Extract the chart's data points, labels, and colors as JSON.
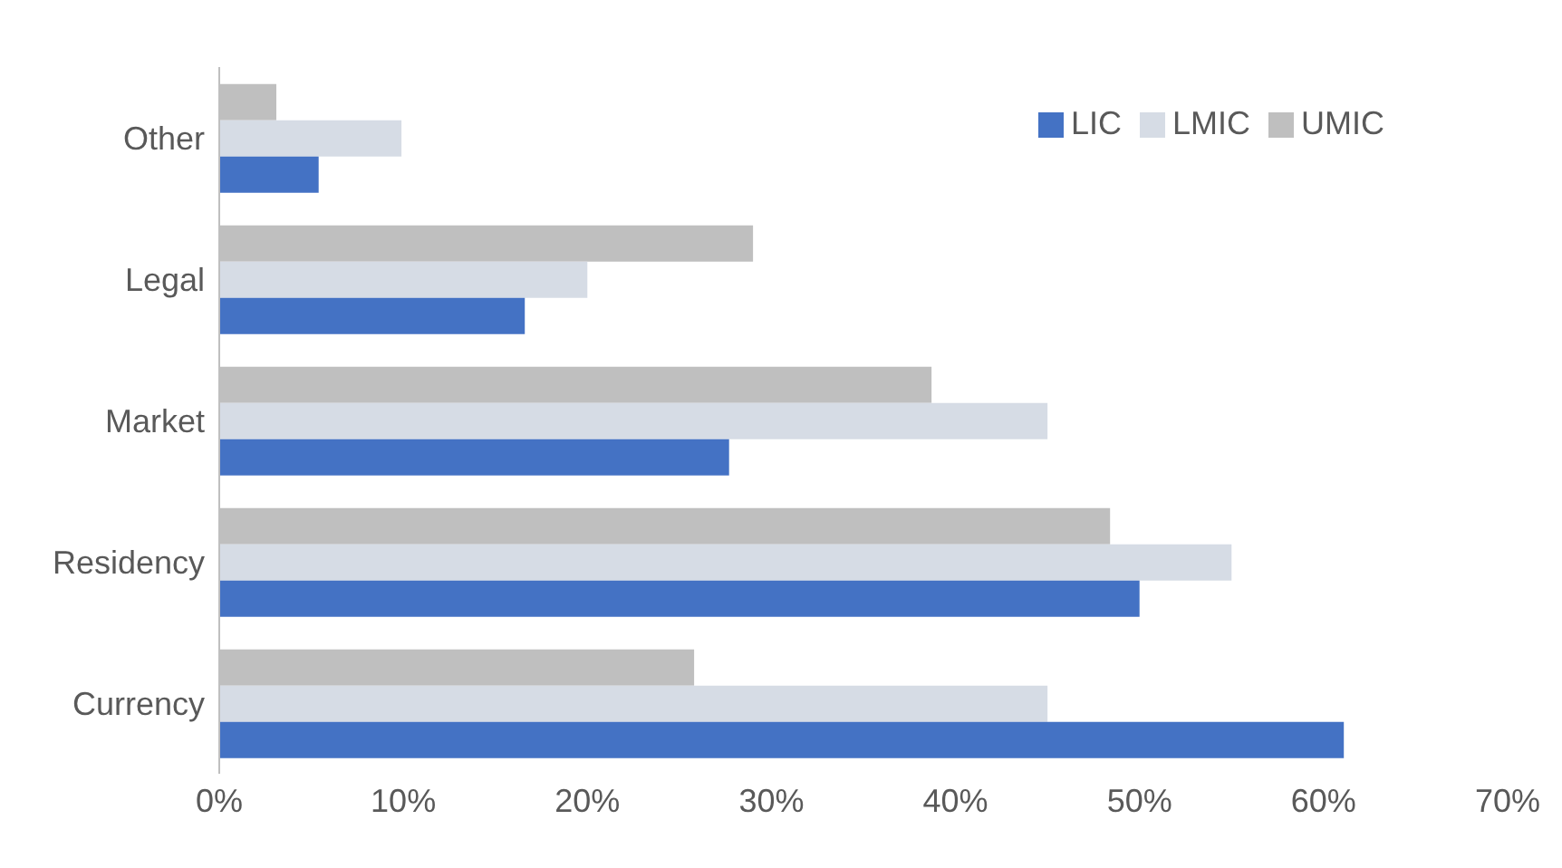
{
  "chart_data": {
    "type": "bar",
    "orientation": "horizontal",
    "categories": [
      "Other",
      "Legal",
      "Market",
      "Residency",
      "Currency"
    ],
    "series": [
      {
        "name": "UMIC",
        "color": "#bfbfbf",
        "values": [
          3.1,
          29,
          38.7,
          48.4,
          25.8
        ]
      },
      {
        "name": "LMIC",
        "color": "#d6dce5",
        "values": [
          9.9,
          20,
          45,
          55,
          45
        ]
      },
      {
        "name": "LIC",
        "color": "#4472c4",
        "values": [
          5.4,
          16.6,
          27.7,
          50,
          61.1
        ]
      }
    ],
    "xlim": [
      0,
      70
    ],
    "xticks": [
      {
        "value": 0,
        "label": "0%"
      },
      {
        "value": 10,
        "label": "10%"
      },
      {
        "value": 20,
        "label": "20%"
      },
      {
        "value": 30,
        "label": "30%"
      },
      {
        "value": 40,
        "label": "40%"
      },
      {
        "value": 50,
        "label": "50%"
      },
      {
        "value": 60,
        "label": "60%"
      },
      {
        "value": 70,
        "label": "70%"
      }
    ],
    "grid": false,
    "legend": "top right"
  }
}
